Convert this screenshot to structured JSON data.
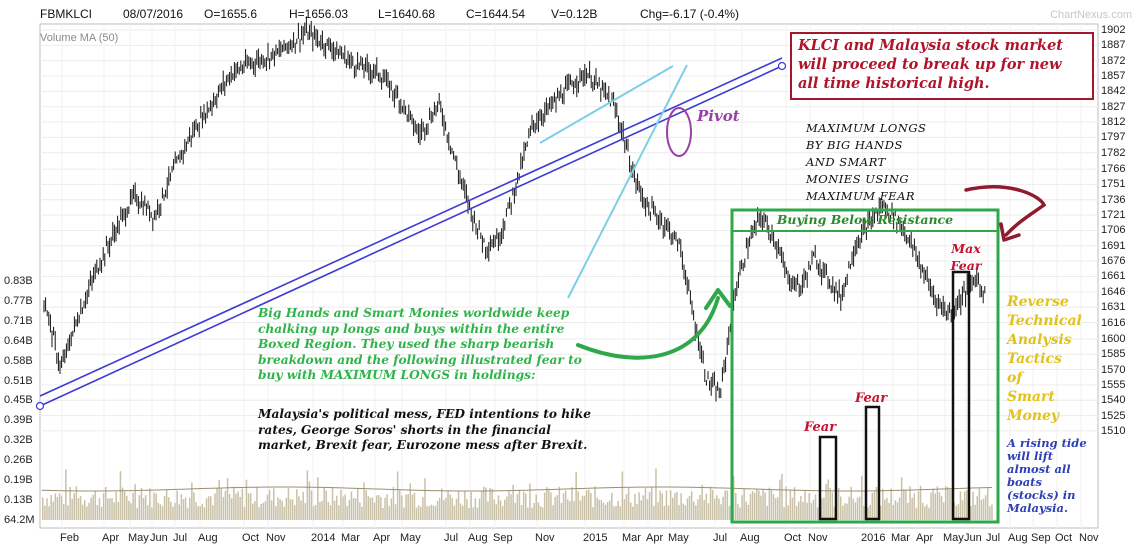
{
  "header": {
    "symbol": "FBMKLCI",
    "date": "08/07/2016",
    "open": "O=1655.6",
    "high": "H=1656.03",
    "low": "L=1640.68",
    "close": "C=1644.54",
    "volume": "V=0.12B",
    "change": "Chg=-6.17 (-0.4%)"
  },
  "brand": "ChartNexus.com",
  "volume_label": "Volume MA (50)",
  "annotations": {
    "callout": "KLCI and Malaysia stock market will proceed to break up for new all time historical high.",
    "pivot": "Pivot",
    "max_longs": [
      "MAXIMUM LONGS",
      "BY BIG HANDS",
      "AND SMART",
      "MONIES USING",
      "MAXIMUM FEAR"
    ],
    "buying": "Buying Below Resistance",
    "max_fear": "Max Fear",
    "fear1": "Fear",
    "fear2": "Fear",
    "green_text": "Big Hands and Smart Monies worldwide keep chalking up longs and buys within the entire Boxed Region. They used the sharp bearish breakdown and the following illustrated fear to buy with MAXIMUM LONGS in holdings:",
    "black_text": "Malaysia's political mess, FED intentions to hike rates, George Soros' shorts in the financial market, Brexit fear, Eurozone mess after Brexit.",
    "reverse": [
      "Reverse",
      "Technical",
      "Analysis",
      "Tactics",
      "of",
      "Smart",
      "Money"
    ],
    "tide": "A rising tide will lift almost all boats (stocks) in Malaysia."
  },
  "colors": {
    "candle": "#111111",
    "trend": "#3b3bd6",
    "wedge": "#7ccfe8",
    "box": "#2ea84a",
    "fear_box": "#111111",
    "pivot": "#9b3fa8",
    "arrow_green": "#2ea84a",
    "arrow_red": "#8e1b2e",
    "volume": "#c9c1a8"
  },
  "chart_data": {
    "type": "candlestick",
    "title": "FBMKLCI",
    "price_axis": [
      1902,
      1887,
      1872,
      1857,
      1842,
      1827,
      1812,
      1797,
      1782,
      1766,
      1751,
      1736,
      1721,
      1706,
      1691,
      1676,
      1661,
      1646,
      1631,
      1616,
      1600,
      1585,
      1570,
      1555,
      1540,
      1525,
      1510
    ],
    "volume_axis": [
      "0.83B",
      "0.77B",
      "0.71B",
      "0.64B",
      "0.58B",
      "0.51B",
      "0.45B",
      "0.39B",
      "0.32B",
      "0.26B",
      "0.19B",
      "0.13B",
      "64.2M"
    ],
    "x_labels": [
      "Feb",
      "Apr",
      "May",
      "Jun",
      "Jul",
      "Aug",
      "Oct",
      "Nov",
      "2014",
      "Mar",
      "Apr",
      "May",
      "Jul",
      "Aug",
      "Sep",
      "Nov",
      "2015",
      "Mar",
      "Apr",
      "May",
      "Jul",
      "Aug",
      "Oct",
      "Nov",
      "2016",
      "Mar",
      "Apr",
      "May",
      "Jun",
      "Jul",
      "Aug",
      "Sep",
      "Oct",
      "Nov"
    ],
    "price_path_approx": [
      [
        0.0,
        1640
      ],
      [
        0.05,
        1570
      ],
      [
        0.1,
        1620
      ],
      [
        0.16,
        1670
      ],
      [
        0.22,
        1710
      ],
      [
        0.27,
        1740
      ],
      [
        0.33,
        1720
      ],
      [
        0.38,
        1760
      ],
      [
        0.44,
        1800
      ],
      [
        0.5,
        1830
      ],
      [
        0.56,
        1860
      ],
      [
        0.62,
        1870
      ],
      [
        0.7,
        1880
      ],
      [
        0.78,
        1900
      ],
      [
        0.86,
        1885
      ],
      [
        0.92,
        1870
      ],
      [
        1.0,
        1860
      ],
      [
        1.06,
        1835
      ],
      [
        1.12,
        1800
      ],
      [
        1.18,
        1830
      ],
      [
        1.24,
        1760
      ],
      [
        1.28,
        1720
      ],
      [
        1.32,
        1690
      ],
      [
        1.36,
        1700
      ],
      [
        1.4,
        1740
      ],
      [
        1.46,
        1810
      ],
      [
        1.52,
        1830
      ],
      [
        1.58,
        1850
      ],
      [
        1.62,
        1860
      ],
      [
        1.66,
        1845
      ],
      [
        1.7,
        1830
      ],
      [
        1.73,
        1800
      ],
      [
        1.76,
        1760
      ],
      [
        1.8,
        1730
      ],
      [
        1.86,
        1710
      ],
      [
        1.9,
        1690
      ],
      [
        1.94,
        1620
      ],
      [
        1.98,
        1560
      ],
      [
        2.02,
        1545
      ],
      [
        2.06,
        1640
      ],
      [
        2.1,
        1690
      ],
      [
        2.14,
        1720
      ],
      [
        2.18,
        1700
      ],
      [
        2.22,
        1660
      ],
      [
        2.26,
        1650
      ],
      [
        2.3,
        1680
      ],
      [
        2.34,
        1660
      ],
      [
        2.38,
        1640
      ],
      [
        2.42,
        1690
      ],
      [
        2.46,
        1710
      ],
      [
        2.5,
        1730
      ],
      [
        2.54,
        1720
      ],
      [
        2.58,
        1700
      ],
      [
        2.62,
        1670
      ],
      [
        2.66,
        1640
      ],
      [
        2.7,
        1625
      ],
      [
        2.74,
        1640
      ],
      [
        2.78,
        1660
      ],
      [
        2.81,
        1645
      ]
    ]
  }
}
